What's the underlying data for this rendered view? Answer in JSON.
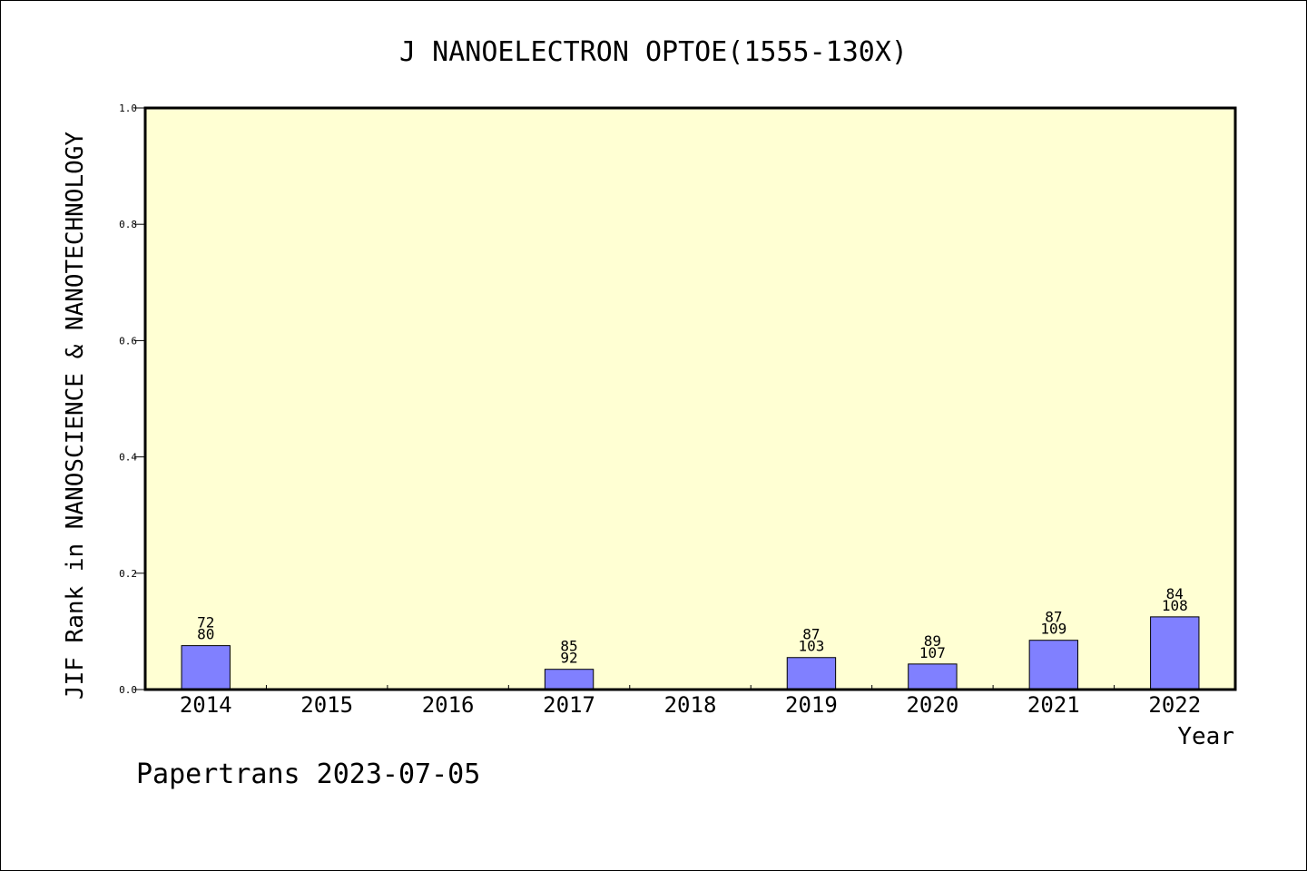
{
  "chart_data": {
    "type": "bar",
    "title": "J NANOELECTRON OPTOE(1555-130X)",
    "xlabel": "Year",
    "ylabel": "JIF Rank in NANOSCIENCE & NANOTECHNOLOGY",
    "footer": "Papertrans 2023-07-05",
    "categories": [
      "2014",
      "2015",
      "2016",
      "2017",
      "2018",
      "2019",
      "2020",
      "2021",
      "2022"
    ],
    "values": [
      0.0755,
      null,
      null,
      0.0348,
      null,
      0.055,
      0.0439,
      0.0847,
      0.125
    ],
    "ranks": [
      "72",
      "",
      "",
      "85",
      "",
      "87",
      "89",
      "87",
      "84"
    ],
    "totals": [
      "80",
      "",
      "",
      "92",
      "",
      "103",
      "107",
      "109",
      "108"
    ],
    "ylim": [
      0,
      1.0
    ],
    "yticks": [
      "0.0",
      "0.2",
      "0.4",
      "0.6",
      "0.8",
      "1.0"
    ],
    "grid": false,
    "colors": {
      "plot_background": "#ffffd3",
      "bar_fill": "#8080ff",
      "axis": "#000000"
    }
  }
}
